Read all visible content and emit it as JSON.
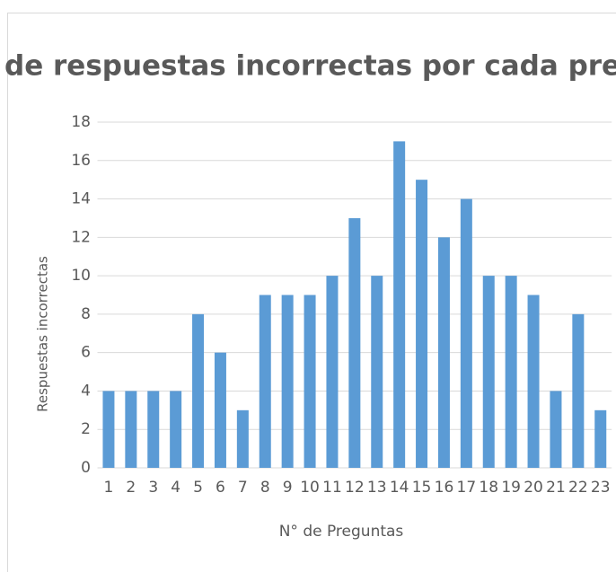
{
  "chart_data": {
    "type": "bar",
    "title": "de respuestas incorrectas por cada pre",
    "x_label": "N° de Preguntas",
    "y_label": "Respuestas incorrectas",
    "categories": [
      "1",
      "2",
      "3",
      "4",
      "5",
      "6",
      "7",
      "8",
      "9",
      "10",
      "11",
      "12",
      "13",
      "14",
      "15",
      "16",
      "17",
      "18",
      "19",
      "20",
      "21",
      "22",
      "23"
    ],
    "values": [
      4,
      4,
      4,
      4,
      8,
      6,
      3,
      9,
      9,
      9,
      10,
      13,
      10,
      17,
      15,
      12,
      14,
      10,
      10,
      9,
      4,
      8,
      3
    ],
    "color": "#5b9bd5",
    "ylim": [
      0,
      18
    ],
    "yticks": [
      0,
      2,
      4,
      6,
      8,
      10,
      12,
      14,
      16,
      18
    ],
    "grid": true
  }
}
